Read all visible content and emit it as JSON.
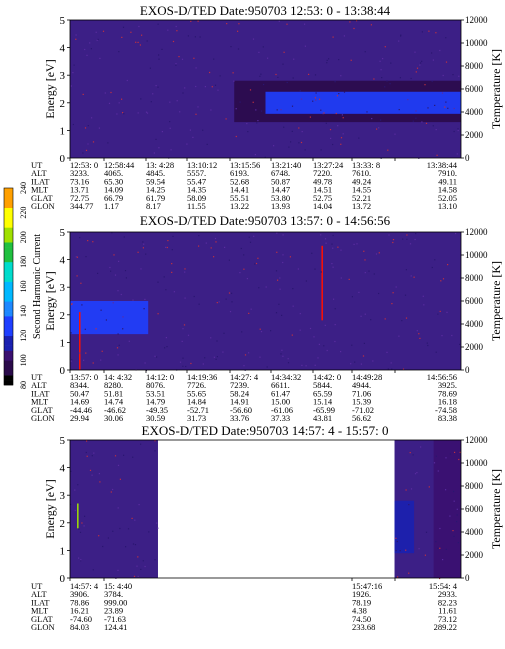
{
  "chart_data": [
    {
      "type": "heatmap",
      "title": "EXOS-D/TED   Date:950703  12:53: 0 - 13:38:44",
      "ylabel": "Energy [eV]",
      "ylabel_right": "Temperature [K]",
      "ylim": [
        0,
        5
      ],
      "ylim_right": [
        0,
        12000
      ],
      "yticks": [
        "0",
        "1",
        "2",
        "3",
        "4",
        "5"
      ],
      "yticks_right": [
        "0",
        "2000",
        "4000",
        "6000",
        "8000",
        "10000",
        "12000"
      ],
      "coverage": [
        [
          0,
          1
        ]
      ],
      "features": [
        {
          "kind": "band",
          "t0": 0.42,
          "t1": 1.0,
          "e_low": 1.3,
          "e_high": 2.8,
          "intensity": 90
        },
        {
          "kind": "band",
          "t0": 0.5,
          "t1": 1.0,
          "e_low": 1.6,
          "e_high": 2.4,
          "intensity": 120
        }
      ],
      "table": {
        "labels": [
          "UT",
          "ALT",
          "ILAT",
          "MLT",
          "GLAT",
          "GLON"
        ],
        "columns": [
          [
            "12:53: 0",
            "3233.",
            "73.16",
            "13.71",
            "72.75",
            "344.77"
          ],
          [
            "12:58:44",
            "4065.",
            "65.30",
            "14.09",
            "66.79",
            "1.17"
          ],
          [
            "13: 4:28",
            "4845.",
            "59.54",
            "14.25",
            "61.79",
            "8.17"
          ],
          [
            "13:10:12",
            "5557.",
            "55.47",
            "14.35",
            "58.09",
            "11.55"
          ],
          [
            "13:15:56",
            "6193.",
            "52.68",
            "14.41",
            "55.51",
            "13.22"
          ],
          [
            "13:21:40",
            "6748.",
            "50.87",
            "14.47",
            "53.80",
            "13.93"
          ],
          [
            "13:27:24",
            "7220.",
            "49.78",
            "14.51",
            "52.75",
            "14.04"
          ],
          [
            "13:33: 8",
            "7610.",
            "49.24",
            "14.55",
            "52.21",
            "13.72"
          ],
          [
            "13:38:44",
            "7910.",
            "49.11",
            "14.58",
            "52.05",
            "13.10"
          ]
        ]
      }
    },
    {
      "type": "heatmap",
      "title": "EXOS-D/TED   Date:950703  13:57: 0 - 14:56:56",
      "ylabel": "Energy [eV]",
      "ylabel_right": "Temperature [K]",
      "ylim": [
        0,
        5
      ],
      "ylim_right": [
        0,
        12000
      ],
      "yticks": [
        "0",
        "1",
        "2",
        "3",
        "4",
        "5"
      ],
      "yticks_right": [
        "0",
        "2000",
        "4000",
        "6000",
        "8000",
        "10000",
        "12000"
      ],
      "coverage": [
        [
          0,
          1
        ]
      ],
      "features": [
        {
          "kind": "band",
          "t0": 0.0,
          "t1": 0.2,
          "e_low": 1.3,
          "e_high": 2.5,
          "intensity": 130
        },
        {
          "kind": "spike",
          "t": 0.025,
          "e_low": 0.0,
          "e_high": 2.1,
          "intensity": 240
        },
        {
          "kind": "spike",
          "t": 0.645,
          "e_low": 1.8,
          "e_high": 4.5,
          "intensity": 240
        }
      ],
      "colorbar": {
        "label": "Second Harmonic Current",
        "range": [
          80,
          240
        ],
        "ticks": [
          "80",
          "100",
          "120",
          "140",
          "160",
          "180",
          "200",
          "220",
          "240"
        ]
      },
      "table": {
        "labels": [
          "UT",
          "ALT",
          "ILAT",
          "MLT",
          "GLAT",
          "GLON"
        ],
        "columns": [
          [
            "13:57: 0",
            "8344.",
            "50.47",
            "14.69",
            "-44.46",
            "29.94"
          ],
          [
            "14: 4:32",
            "8280.",
            "51.81",
            "14.74",
            "-46.62",
            "30.06"
          ],
          [
            "14:12: 0",
            "8076.",
            "53.51",
            "14.79",
            "-49.35",
            "30.59"
          ],
          [
            "14:19:36",
            "7726.",
            "55.65",
            "14.84",
            "-52.71",
            "31.73"
          ],
          [
            "14:27: 4",
            "7239.",
            "58.24",
            "14.91",
            "-56.60",
            "33.76"
          ],
          [
            "14:34:32",
            "6611.",
            "61.47",
            "15.00",
            "-61.06",
            "37.33"
          ],
          [
            "14:42: 0",
            "5844.",
            "65.59",
            "15.14",
            "-65.99",
            "43.81"
          ],
          [
            "14:49:28",
            "4944.",
            "71.06",
            "15.39",
            "-71.02",
            "56.62"
          ],
          [
            "14:56:56",
            "3925.",
            "78.69",
            "16.18",
            "-74.58",
            "83.38"
          ]
        ]
      }
    },
    {
      "type": "heatmap",
      "title": "EXOS-D/TED   Date:950703  14:57: 4 - 15:57: 0",
      "ylabel": "Energy [eV]",
      "ylabel_right": "Temperature [K]",
      "ylim": [
        0,
        5
      ],
      "ylim_right": [
        0,
        12000
      ],
      "yticks": [
        "0",
        "1",
        "2",
        "3",
        "4",
        "5"
      ],
      "yticks_right": [
        "0",
        "2000",
        "4000",
        "6000",
        "8000",
        "10000",
        "12000"
      ],
      "coverage": [
        [
          0,
          0.225
        ],
        [
          0.83,
          1
        ]
      ],
      "features": [
        {
          "kind": "spike",
          "t": 0.02,
          "e_low": 1.8,
          "e_high": 2.7,
          "intensity": 200
        },
        {
          "kind": "band",
          "t0": 0.83,
          "t1": 0.88,
          "e_low": 0.9,
          "e_high": 2.8,
          "intensity": 110
        },
        {
          "kind": "band",
          "t0": 0.93,
          "t1": 1.0,
          "e_low": 0.0,
          "e_high": 5.0,
          "intensity": 100
        }
      ],
      "table": {
        "labels": [
          "UT",
          "ALT",
          "ILAT",
          "MLT",
          "GLAT",
          "GLON"
        ],
        "columns": [
          [
            "14:57: 4",
            "3906.",
            "78.86",
            "16.21",
            "-74.60",
            "84.03"
          ],
          [
            "15: 4:40",
            "3784.",
            "999.00",
            "23.89",
            "-71.63",
            "124.41"
          ],
          [
            "",
            "",
            "",
            "",
            "",
            ""
          ],
          [
            "",
            "",
            "",
            "",
            "",
            ""
          ],
          [
            "",
            "",
            "",
            "",
            "",
            ""
          ],
          [
            "",
            "",
            "",
            "",
            "",
            ""
          ],
          [
            "",
            "",
            "",
            "",
            "",
            ""
          ],
          [
            "15:47:16",
            "1926.",
            "78.19",
            "4.38",
            "74.50",
            "233.68"
          ],
          [
            "15:54: 4",
            "2933.",
            "82.23",
            "11.61",
            "73.12",
            "289.22"
          ]
        ]
      }
    }
  ]
}
